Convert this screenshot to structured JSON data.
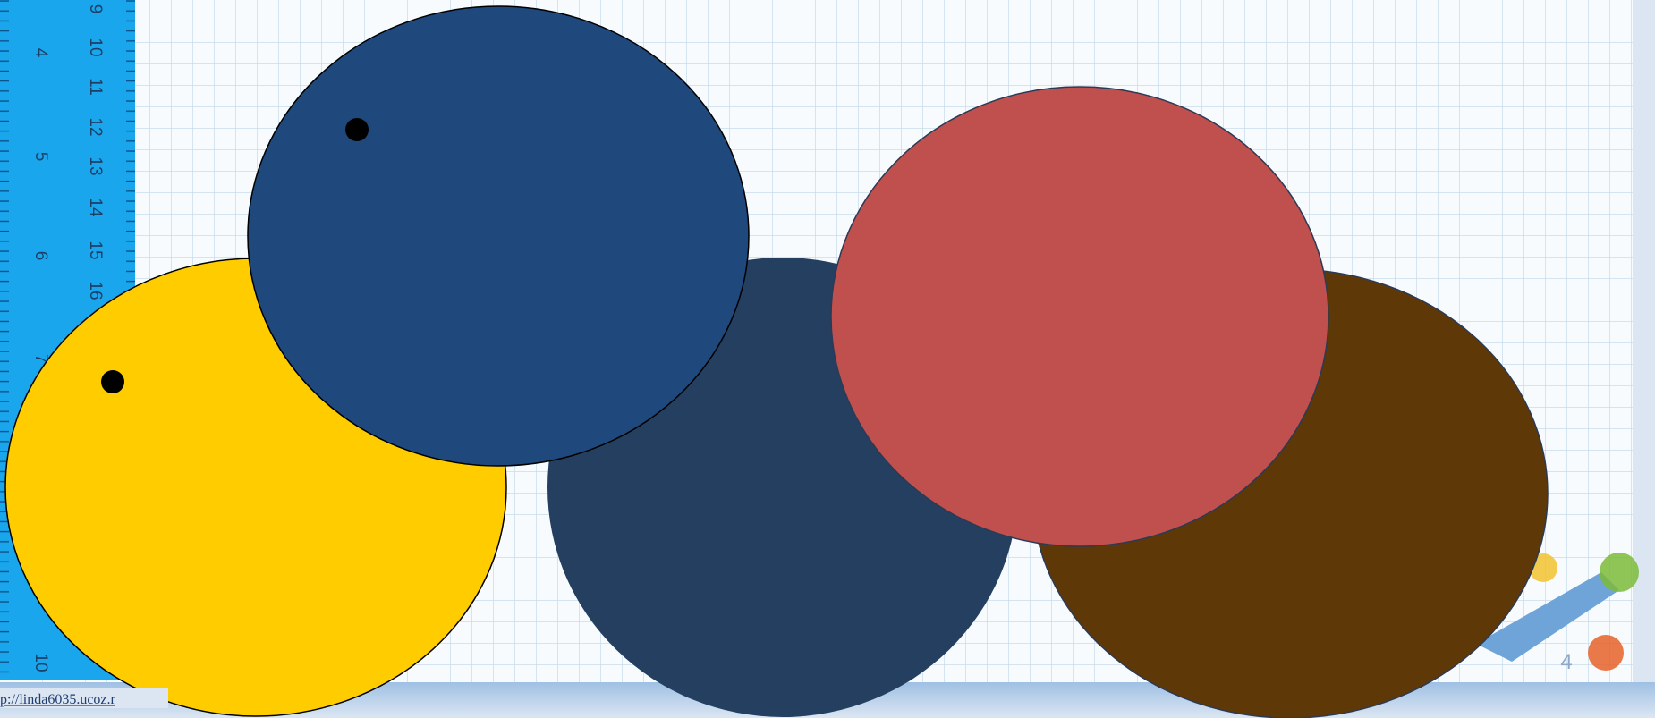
{
  "ruler": {
    "inner_numbers": [
      9,
      10,
      11,
      12,
      13,
      14,
      15,
      16
    ],
    "outer_numbers": [
      4,
      5,
      6,
      7,
      10
    ]
  },
  "footer": {
    "url": "p://linda6035.ucoz.r",
    "slide_number": "4"
  }
}
